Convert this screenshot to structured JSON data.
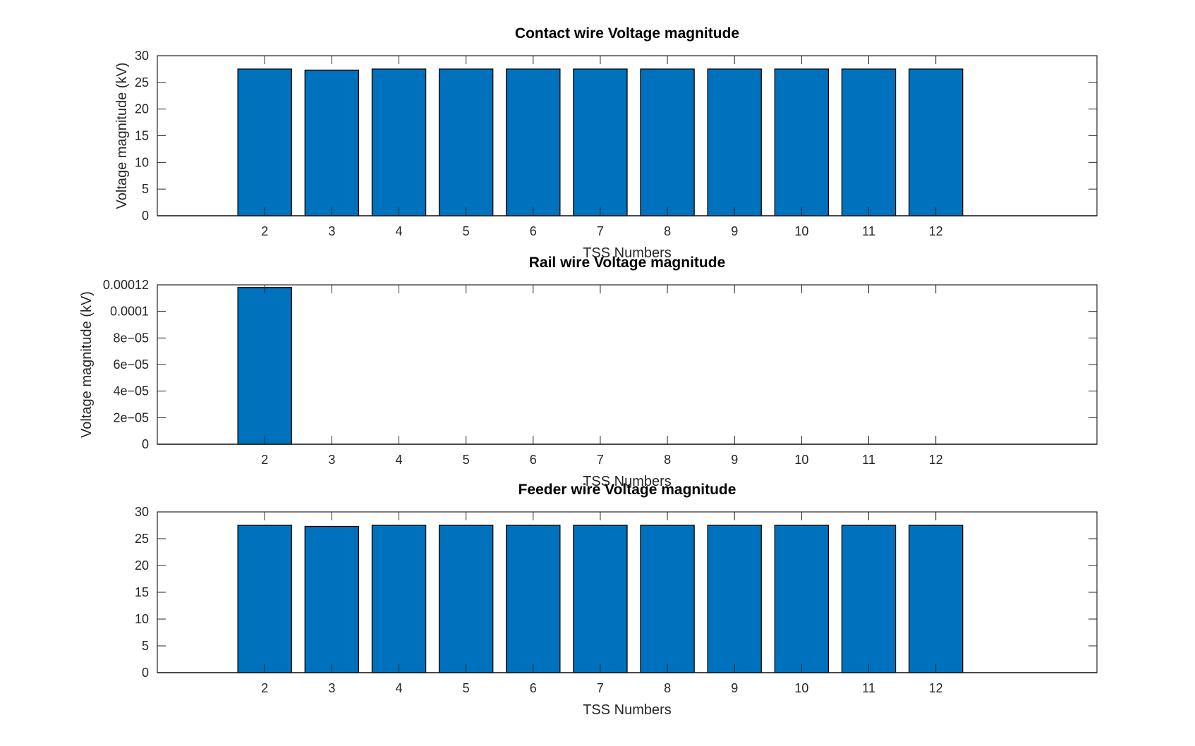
{
  "figure": {
    "bar_color": "#0072bd",
    "axes_color": "#262626",
    "background": "#ffffff"
  },
  "chart_data": [
    {
      "type": "bar",
      "title": "Contact wire Voltage magnitude",
      "xlabel": "TSS Numbers",
      "ylabel": "Voltage magnitude (kV)",
      "categories": [
        "2",
        "3",
        "4",
        "5",
        "6",
        "7",
        "8",
        "9",
        "10",
        "11",
        "12"
      ],
      "values": [
        27.5,
        27.3,
        27.5,
        27.5,
        27.5,
        27.5,
        27.5,
        27.5,
        27.5,
        27.5,
        27.5
      ],
      "xlim": [
        0.4,
        14.4
      ],
      "ylim": [
        0,
        30
      ],
      "yticks": [
        0,
        5,
        10,
        15,
        20,
        25,
        30
      ],
      "ytick_labels": [
        "0",
        "5",
        "10",
        "15",
        "20",
        "25",
        "30"
      ],
      "grid": false,
      "legend": "none"
    },
    {
      "type": "bar",
      "title": "Rail wire Voltage magnitude",
      "xlabel": "TSS Numbers",
      "ylabel": "Voltage magnitude (kV)",
      "categories": [
        "2",
        "3",
        "4",
        "5",
        "6",
        "7",
        "8",
        "9",
        "10",
        "11",
        "12"
      ],
      "values": [
        0.000118,
        0,
        0,
        0,
        0,
        0,
        0,
        0,
        0,
        0,
        0
      ],
      "xlim": [
        0.4,
        14.4
      ],
      "ylim": [
        0,
        0.00012
      ],
      "yticks": [
        0,
        2e-05,
        4e-05,
        6e-05,
        8e-05,
        0.0001,
        0.00012
      ],
      "ytick_labels": [
        "0",
        "2e−05",
        "4e−05",
        "6e−05",
        "8e−05",
        "0.0001",
        "0.00012"
      ],
      "grid": false,
      "legend": "none"
    },
    {
      "type": "bar",
      "title": "Feeder wire Voltage magnitude",
      "xlabel": "TSS Numbers",
      "ylabel": "",
      "categories": [
        "2",
        "3",
        "4",
        "5",
        "6",
        "7",
        "8",
        "9",
        "10",
        "11",
        "12"
      ],
      "values": [
        27.5,
        27.3,
        27.5,
        27.5,
        27.5,
        27.5,
        27.5,
        27.5,
        27.5,
        27.5,
        27.5
      ],
      "xlim": [
        0.4,
        14.4
      ],
      "ylim": [
        0,
        30
      ],
      "yticks": [
        0,
        5,
        10,
        15,
        20,
        25,
        30
      ],
      "ytick_labels": [
        "0",
        "5",
        "10",
        "15",
        "20",
        "25",
        "30"
      ],
      "grid": false,
      "legend": "none"
    }
  ]
}
